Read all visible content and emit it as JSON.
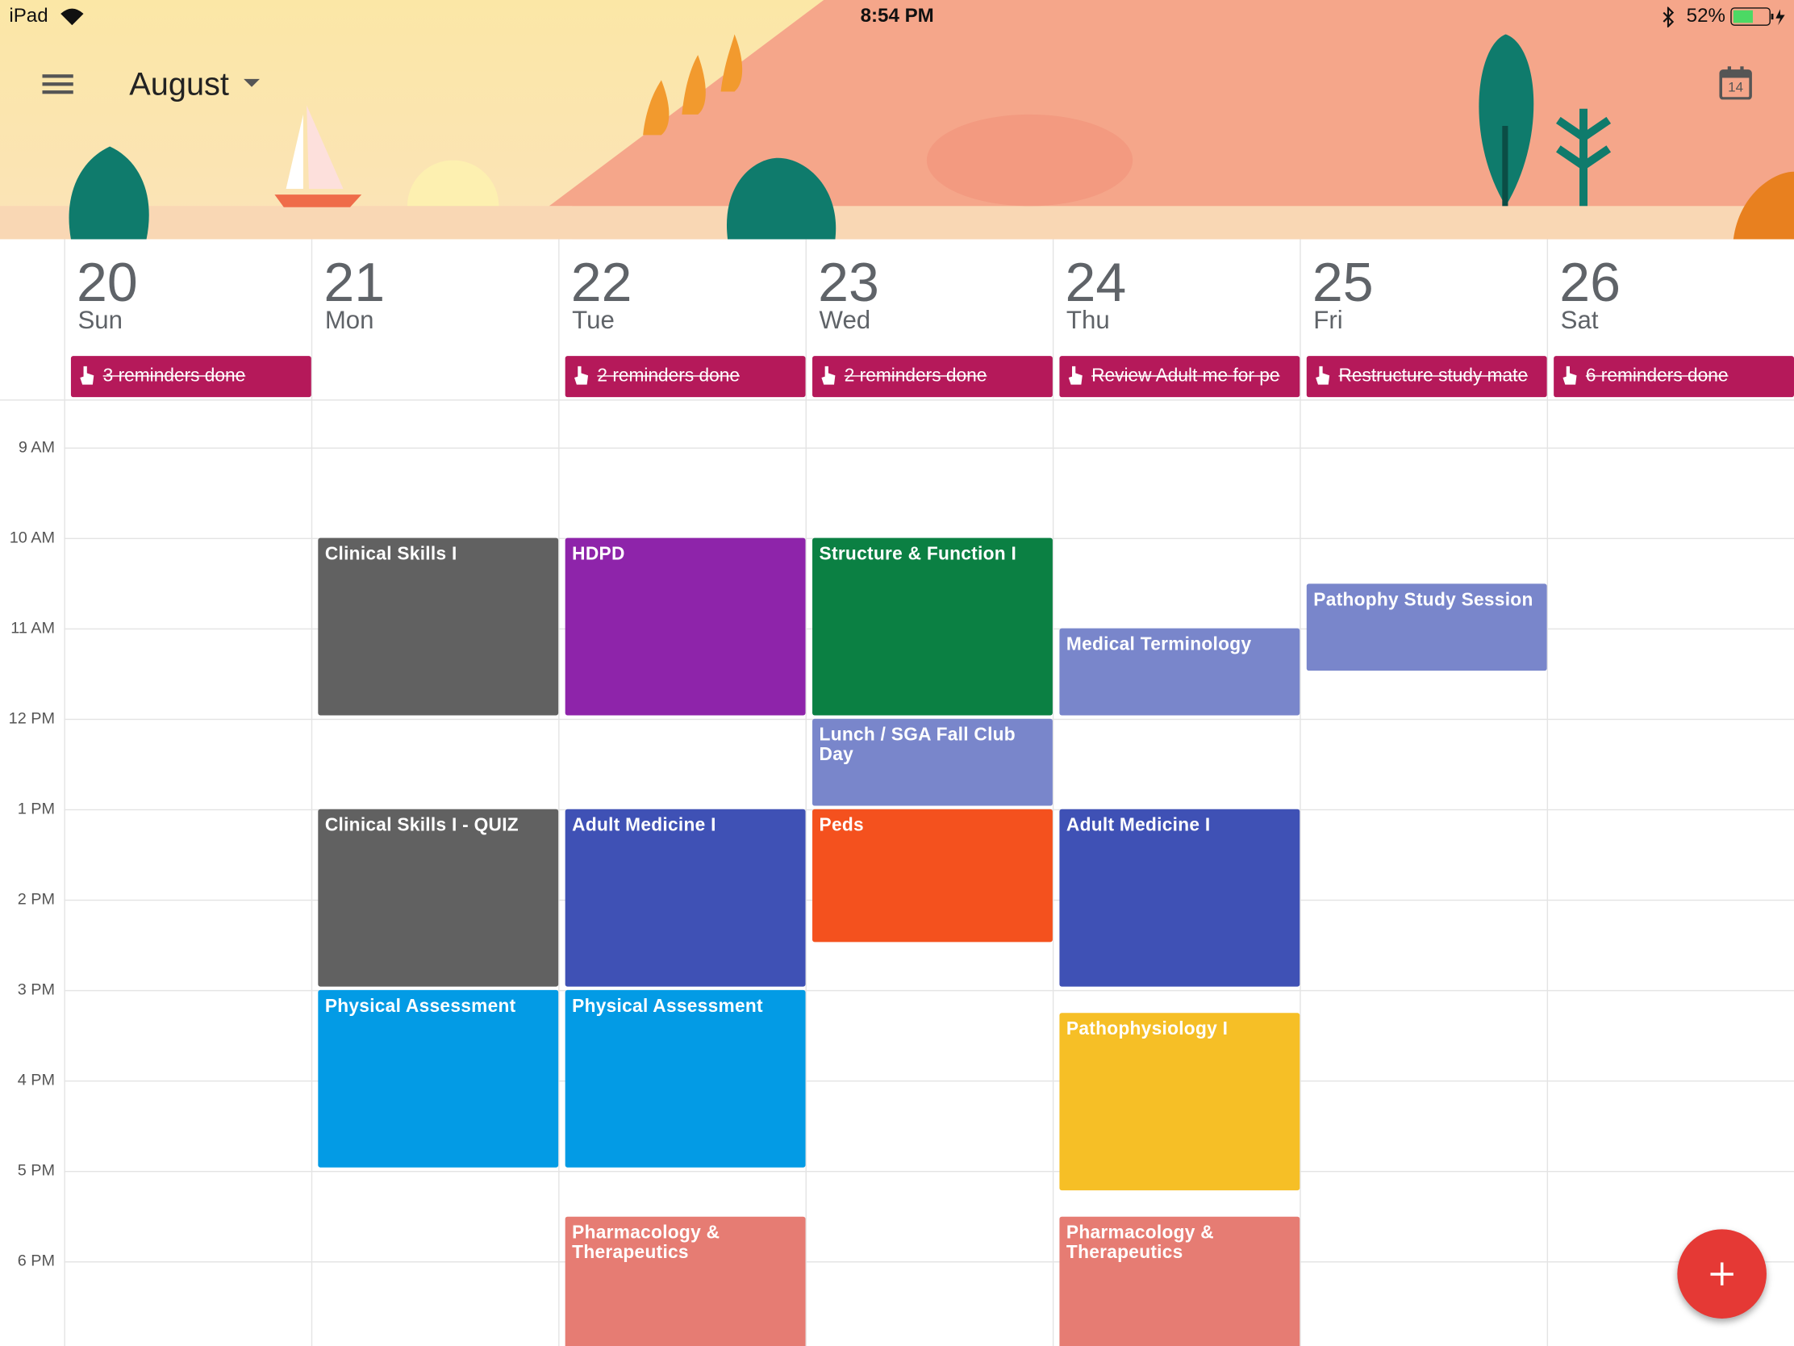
{
  "status_bar": {
    "device": "iPad",
    "time": "8:54 PM",
    "battery": "52%"
  },
  "header": {
    "month": "August",
    "today_icon": "14"
  },
  "days": [
    {
      "number": "20",
      "name": "Sun",
      "reminder": "3 reminders done"
    },
    {
      "number": "21",
      "name": "Mon"
    },
    {
      "number": "22",
      "name": "Tue",
      "reminder": "2 reminders done"
    },
    {
      "number": "23",
      "name": "Wed",
      "reminder": "2 reminders done"
    },
    {
      "number": "24",
      "name": "Thu",
      "reminder": "Review Adult me for pe"
    },
    {
      "number": "25",
      "name": "Fri",
      "reminder": "Restructure study mate"
    },
    {
      "number": "26",
      "name": "Sat",
      "reminder": "6 reminders done"
    }
  ],
  "times": [
    {
      "value": 9,
      "label": "9 AM"
    },
    {
      "value": 10,
      "label": "10 AM"
    },
    {
      "value": 11,
      "label": "11 AM"
    },
    {
      "value": 12,
      "label": "12 PM"
    },
    {
      "value": 13,
      "label": "1 PM"
    },
    {
      "value": 14,
      "label": "2 PM"
    },
    {
      "value": 15,
      "label": "3 PM"
    },
    {
      "value": 16,
      "label": "4 PM"
    },
    {
      "value": 17,
      "label": "5 PM"
    },
    {
      "value": 18,
      "label": "6 PM"
    }
  ],
  "events": [
    {
      "title": "Clinical Skills I",
      "day": 1,
      "start": 10,
      "end": 12,
      "color": "#616161"
    },
    {
      "title": "Clinical Skills I - QUIZ",
      "day": 1,
      "start": 13,
      "end": 15,
      "color": "#616161"
    },
    {
      "title": "Physical Assessment",
      "day": 1,
      "start": 15,
      "end": 17,
      "color": "#039be5"
    },
    {
      "title": "HDPD",
      "day": 2,
      "start": 10,
      "end": 12,
      "color": "#8e24aa"
    },
    {
      "title": "Adult Medicine I",
      "day": 2,
      "start": 13,
      "end": 15,
      "color": "#3f51b5"
    },
    {
      "title": "Physical Assessment",
      "day": 2,
      "start": 15,
      "end": 17,
      "color": "#039be5"
    },
    {
      "title": "Pharmacology & Therapeutics",
      "day": 2,
      "start": 17.5,
      "end": 19,
      "color": "#e67c73"
    },
    {
      "title": "Structure & Function I",
      "day": 3,
      "start": 10,
      "end": 12,
      "color": "#0b8043"
    },
    {
      "title": "Lunch / SGA Fall Club Day",
      "day": 3,
      "start": 12,
      "end": 13,
      "color": "#7986cb"
    },
    {
      "title": "Peds",
      "day": 3,
      "start": 13,
      "end": 14.5,
      "color": "#f4511e"
    },
    {
      "title": "Medical Terminology",
      "day": 4,
      "start": 11,
      "end": 12,
      "color": "#7986cb"
    },
    {
      "title": "Adult Medicine I",
      "day": 4,
      "start": 13,
      "end": 15,
      "color": "#3f51b5"
    },
    {
      "title": "Pathophysiology I",
      "day": 4,
      "start": 15.25,
      "end": 17.25,
      "color": "#f6bf26"
    },
    {
      "title": "Pharmacology & Therapeutics",
      "day": 4,
      "start": 17.5,
      "end": 19,
      "color": "#e67c73"
    },
    {
      "title": "Pathophy Study Session",
      "day": 5,
      "start": 10.5,
      "end": 11.5,
      "color": "#7986cb"
    }
  ]
}
